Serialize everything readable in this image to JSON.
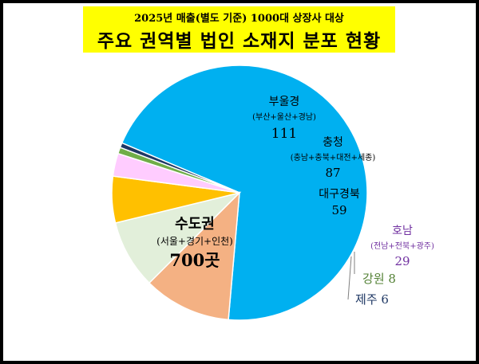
{
  "subtitle": "2025년 매출(별도 기준) 1000대 상장사 대상",
  "title": "주요 권역별 법인 소재지 분포 현황",
  "chart_data": {
    "type": "pie",
    "unit": "곳",
    "slices": [
      {
        "name": "수도권",
        "detail": "(서울+경기+인천)",
        "value": 700,
        "value_label": "700곳",
        "color": "#00b0f0",
        "text_color": "#000000"
      },
      {
        "name": "부울경",
        "detail": "(부산+울산+경남)",
        "value": 111,
        "value_label": "111",
        "color": "#f4b183",
        "text_color": "#000000"
      },
      {
        "name": "충청",
        "detail": "(충남+충북+대전+세종)",
        "value": 87,
        "value_label": "87",
        "color": "#e2efda",
        "text_color": "#000000"
      },
      {
        "name": "대구경북",
        "detail": "",
        "value": 59,
        "value_label": "59",
        "color": "#ffc000",
        "text_color": "#000000"
      },
      {
        "name": "호남",
        "detail": "(전남+전북+광주)",
        "value": 29,
        "value_label": "29",
        "color": "#ffccff",
        "text_color": "#7030a0"
      },
      {
        "name": "강원",
        "detail": "",
        "value": 8,
        "value_label": "8",
        "color": "#70ad47",
        "text_color": "#538135"
      },
      {
        "name": "제주",
        "detail": "",
        "value": 6,
        "value_label": "6",
        "color": "#1f3864",
        "text_color": "#1f3864"
      }
    ]
  }
}
